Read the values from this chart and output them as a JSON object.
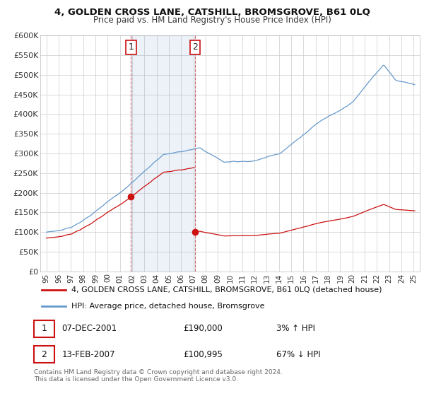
{
  "title": "4, GOLDEN CROSS LANE, CATSHILL, BROMSGROVE, B61 0LQ",
  "subtitle": "Price paid vs. HM Land Registry's House Price Index (HPI)",
  "ylabel_ticks": [
    "£0",
    "£50K",
    "£100K",
    "£150K",
    "£200K",
    "£250K",
    "£300K",
    "£350K",
    "£400K",
    "£450K",
    "£500K",
    "£550K",
    "£600K"
  ],
  "ytick_values": [
    0,
    50000,
    100000,
    150000,
    200000,
    250000,
    300000,
    350000,
    400000,
    450000,
    500000,
    550000,
    600000
  ],
  "ylim": [
    0,
    600000
  ],
  "hpi_color": "#6699cc",
  "price_color": "#cc1111",
  "marker1_price": 190000,
  "marker1_x": 2001.917,
  "marker2_price": 100995,
  "marker2_x": 2007.125,
  "vline1_x": 2001.917,
  "vline2_x": 2007.125,
  "legend_line1": "4, GOLDEN CROSS LANE, CATSHILL, BROMSGROVE, B61 0LQ (detached house)",
  "legend_line2": "HPI: Average price, detached house, Bromsgrove",
  "background_color": "#ffffff",
  "grid_color": "#cccccc",
  "xlim_start": 1994.5,
  "xlim_end": 2025.5
}
